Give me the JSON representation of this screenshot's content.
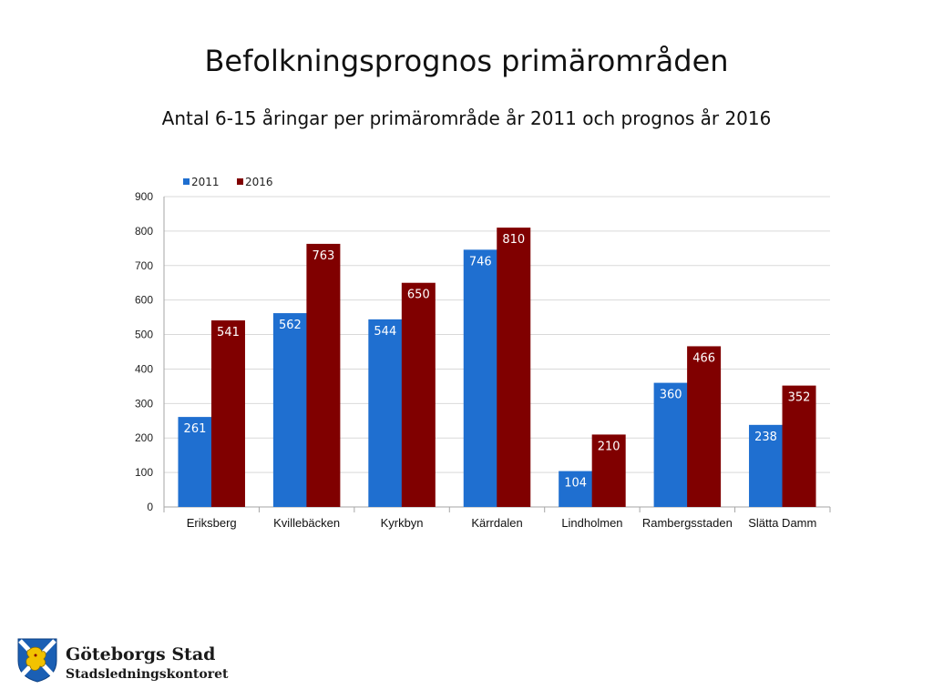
{
  "slide": {
    "title": "Befolkningsprognos primärområden",
    "subtitle": "Antal 6-15 åringar per primärområde år 2011 och prognos år 2016"
  },
  "chart_data": {
    "type": "bar",
    "categories": [
      "Eriksberg",
      "Kvillebäcken",
      "Kyrkbyn",
      "Kärrdalen",
      "Lindholmen",
      "Rambergsstaden",
      "Slätta Damm"
    ],
    "series": [
      {
        "name": "2011",
        "values": [
          261,
          562,
          544,
          746,
          104,
          360,
          238
        ],
        "color": "#1f6fd0"
      },
      {
        "name": "2016",
        "values": [
          541,
          763,
          650,
          810,
          210,
          466,
          352
        ],
        "color": "#800000"
      }
    ],
    "ylim": [
      0,
      900
    ],
    "yticks": [
      0,
      100,
      200,
      300,
      400,
      500,
      600,
      700,
      800,
      900
    ],
    "grid": true,
    "legend": "top-left",
    "data_labels": true
  },
  "footer": {
    "org_name": "Göteborgs Stad",
    "department": "Stadsledningskontoret",
    "logo_icon": "goteborg-coat-of-arms-icon"
  }
}
